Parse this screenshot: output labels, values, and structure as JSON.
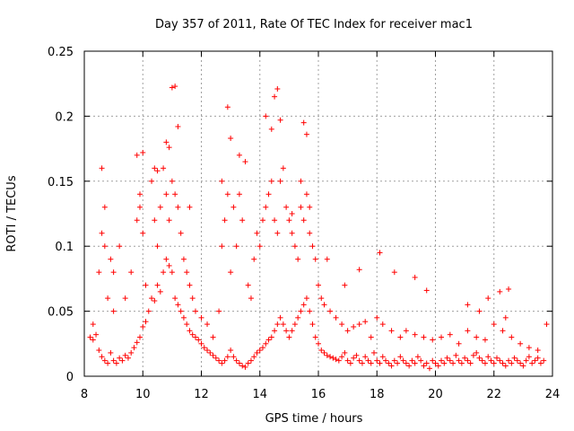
{
  "chart_data": {
    "type": "scatter",
    "title": "Day 357 of 2011, Rate Of TEC Index for receiver mac1",
    "xlabel": "GPS time / hours",
    "ylabel": "ROTI / TECUs",
    "xlim": [
      8,
      24
    ],
    "ylim": [
      0,
      0.25
    ],
    "x_ticks": [
      "8",
      "10",
      "12",
      "14",
      "16",
      "18",
      "20",
      "22",
      "24"
    ],
    "y_ticks": [
      "0",
      "0.05",
      "0.1",
      "0.15",
      "0.2",
      "0.25"
    ],
    "x_tick_values": [
      8,
      10,
      12,
      14,
      16,
      18,
      20,
      22,
      24
    ],
    "y_tick_values": [
      0,
      0.05,
      0.1,
      0.15,
      0.2,
      0.25
    ],
    "grid": true,
    "marker": "+",
    "series": [
      {
        "name": "mac1",
        "color": "#ff0000",
        "x": [
          8.2,
          8.3,
          8.4,
          8.5,
          8.6,
          8.7,
          8.8,
          8.9,
          9.0,
          9.1,
          9.2,
          9.3,
          9.4,
          9.5,
          9.6,
          9.7,
          9.8,
          9.9,
          10.0,
          10.1,
          10.2,
          10.3,
          10.4,
          10.5,
          10.6,
          10.7,
          10.8,
          10.9,
          11.0,
          11.1,
          11.2,
          11.3,
          11.4,
          11.5,
          11.6,
          11.7,
          11.8,
          11.9,
          12.0,
          12.1,
          12.2,
          12.3,
          12.4,
          12.5,
          12.6,
          12.7,
          12.8,
          12.9,
          13.0,
          13.1,
          13.2,
          13.3,
          13.4,
          13.5,
          13.6,
          13.7,
          13.8,
          13.9,
          14.0,
          14.1,
          14.2,
          14.3,
          14.4,
          14.5,
          14.6,
          14.7,
          14.8,
          14.9,
          15.0,
          15.1,
          15.2,
          15.3,
          15.4,
          15.5,
          15.6,
          15.7,
          15.8,
          15.9,
          16.0,
          16.1,
          16.2,
          16.3,
          16.4,
          16.5,
          16.6,
          16.7,
          16.8,
          16.9,
          17.0,
          17.1,
          17.2,
          17.3,
          17.4,
          17.5,
          17.6,
          17.7,
          17.8,
          17.9,
          18.0,
          18.1,
          18.2,
          18.3,
          18.4,
          18.5,
          18.6,
          18.7,
          18.8,
          18.9,
          19.0,
          19.1,
          19.2,
          19.3,
          19.4,
          19.5,
          19.6,
          19.7,
          19.8,
          19.9,
          20.0,
          20.1,
          20.2,
          20.3,
          20.4,
          20.5,
          20.6,
          20.7,
          20.8,
          20.9,
          21.0,
          21.1,
          21.2,
          21.3,
          21.4,
          21.5,
          21.6,
          21.7,
          21.8,
          21.9,
          22.0,
          22.1,
          22.2,
          22.3,
          22.4,
          22.5,
          22.6,
          22.7,
          22.8,
          22.9,
          23.0,
          23.1,
          23.2,
          23.3,
          23.4,
          23.5,
          23.6,
          23.7,
          8.3,
          8.5,
          8.6,
          8.7,
          8.8,
          8.9,
          9.0,
          9.2,
          9.4,
          9.6,
          9.8,
          9.9,
          10.0,
          10.1,
          10.3,
          10.4,
          10.5,
          10.6,
          10.7,
          10.8,
          10.9,
          11.0,
          11.1,
          11.2,
          11.3,
          11.4,
          11.5,
          11.6,
          11.7,
          11.8,
          12.0,
          12.2,
          12.4,
          12.6,
          12.7,
          12.8,
          12.9,
          13.0,
          13.1,
          13.2,
          13.3,
          13.4,
          13.6,
          13.7,
          13.8,
          13.9,
          14.0,
          14.1,
          14.2,
          14.3,
          14.4,
          14.5,
          14.6,
          14.7,
          14.8,
          14.9,
          15.0,
          15.1,
          15.2,
          15.3,
          15.4,
          15.5,
          15.6,
          15.7,
          15.8,
          15.9,
          16.0,
          16.1,
          16.2,
          16.4,
          16.6,
          16.8,
          17.0,
          17.2,
          17.4,
          17.6,
          17.8,
          18.0,
          18.2,
          18.5,
          18.8,
          19.0,
          19.3,
          19.6,
          19.9,
          20.2,
          20.5,
          20.8,
          21.1,
          21.4,
          21.7,
          22.0,
          22.3,
          22.6,
          22.9,
          23.2,
          23.5,
          8.6,
          8.7,
          9.0,
          9.8,
          9.9,
          10.0,
          10.4,
          10.5,
          10.8,
          10.9,
          11.0,
          11.1,
          11.2,
          11.6,
          12.7,
          12.9,
          13.0,
          13.3,
          13.5,
          14.2,
          14.4,
          14.5,
          14.6,
          14.7,
          15.1,
          15.4,
          15.5,
          15.6,
          15.7,
          16.3,
          16.9,
          17.4,
          18.1,
          18.6,
          19.3,
          19.7,
          21.1,
          21.5,
          21.8,
          22.2,
          22.4,
          22.5,
          23.8
        ],
        "y": [
          0.03,
          0.028,
          0.032,
          0.02,
          0.015,
          0.012,
          0.01,
          0.018,
          0.012,
          0.01,
          0.014,
          0.012,
          0.016,
          0.014,
          0.018,
          0.022,
          0.026,
          0.03,
          0.038,
          0.042,
          0.05,
          0.06,
          0.058,
          0.07,
          0.065,
          0.08,
          0.09,
          0.085,
          0.08,
          0.06,
          0.055,
          0.05,
          0.045,
          0.04,
          0.035,
          0.032,
          0.03,
          0.028,
          0.025,
          0.022,
          0.02,
          0.018,
          0.016,
          0.014,
          0.012,
          0.01,
          0.012,
          0.015,
          0.02,
          0.015,
          0.012,
          0.01,
          0.008,
          0.007,
          0.01,
          0.012,
          0.015,
          0.018,
          0.02,
          0.022,
          0.025,
          0.028,
          0.03,
          0.035,
          0.04,
          0.045,
          0.04,
          0.035,
          0.03,
          0.035,
          0.04,
          0.045,
          0.05,
          0.055,
          0.06,
          0.05,
          0.04,
          0.03,
          0.025,
          0.02,
          0.018,
          0.016,
          0.015,
          0.014,
          0.013,
          0.012,
          0.015,
          0.018,
          0.012,
          0.01,
          0.014,
          0.016,
          0.012,
          0.01,
          0.015,
          0.012,
          0.01,
          0.018,
          0.012,
          0.01,
          0.015,
          0.012,
          0.01,
          0.008,
          0.012,
          0.01,
          0.015,
          0.012,
          0.01,
          0.008,
          0.012,
          0.01,
          0.015,
          0.012,
          0.008,
          0.01,
          0.006,
          0.012,
          0.01,
          0.008,
          0.012,
          0.01,
          0.014,
          0.012,
          0.01,
          0.016,
          0.012,
          0.01,
          0.014,
          0.012,
          0.01,
          0.016,
          0.018,
          0.014,
          0.012,
          0.01,
          0.015,
          0.012,
          0.01,
          0.014,
          0.012,
          0.01,
          0.008,
          0.012,
          0.01,
          0.014,
          0.012,
          0.01,
          0.008,
          0.012,
          0.015,
          0.01,
          0.012,
          0.014,
          0.01,
          0.012,
          0.04,
          0.08,
          0.11,
          0.13,
          0.06,
          0.09,
          0.05,
          0.1,
          0.06,
          0.08,
          0.12,
          0.13,
          0.11,
          0.07,
          0.15,
          0.12,
          0.1,
          0.13,
          0.16,
          0.14,
          0.12,
          0.15,
          0.14,
          0.13,
          0.11,
          0.09,
          0.08,
          0.07,
          0.06,
          0.05,
          0.045,
          0.04,
          0.03,
          0.05,
          0.1,
          0.12,
          0.14,
          0.08,
          0.13,
          0.1,
          0.14,
          0.12,
          0.07,
          0.06,
          0.09,
          0.11,
          0.1,
          0.12,
          0.13,
          0.14,
          0.15,
          0.12,
          0.11,
          0.15,
          0.16,
          0.13,
          0.12,
          0.11,
          0.1,
          0.09,
          0.13,
          0.12,
          0.14,
          0.11,
          0.1,
          0.09,
          0.07,
          0.06,
          0.055,
          0.05,
          0.045,
          0.04,
          0.035,
          0.038,
          0.04,
          0.042,
          0.03,
          0.045,
          0.04,
          0.035,
          0.03,
          0.035,
          0.032,
          0.03,
          0.028,
          0.03,
          0.032,
          0.025,
          0.035,
          0.03,
          0.028,
          0.04,
          0.035,
          0.03,
          0.025,
          0.022,
          0.02,
          0.16,
          0.1,
          0.08,
          0.17,
          0.14,
          0.172,
          0.16,
          0.158,
          0.18,
          0.176,
          0.222,
          0.223,
          0.192,
          0.13,
          0.15,
          0.207,
          0.183,
          0.17,
          0.165,
          0.2,
          0.19,
          0.215,
          0.221,
          0.197,
          0.125,
          0.15,
          0.195,
          0.186,
          0.13,
          0.09,
          0.07,
          0.082,
          0.095,
          0.08,
          0.076,
          0.066,
          0.055,
          0.05,
          0.06,
          0.065,
          0.045,
          0.067,
          0.04
        ]
      }
    ]
  }
}
